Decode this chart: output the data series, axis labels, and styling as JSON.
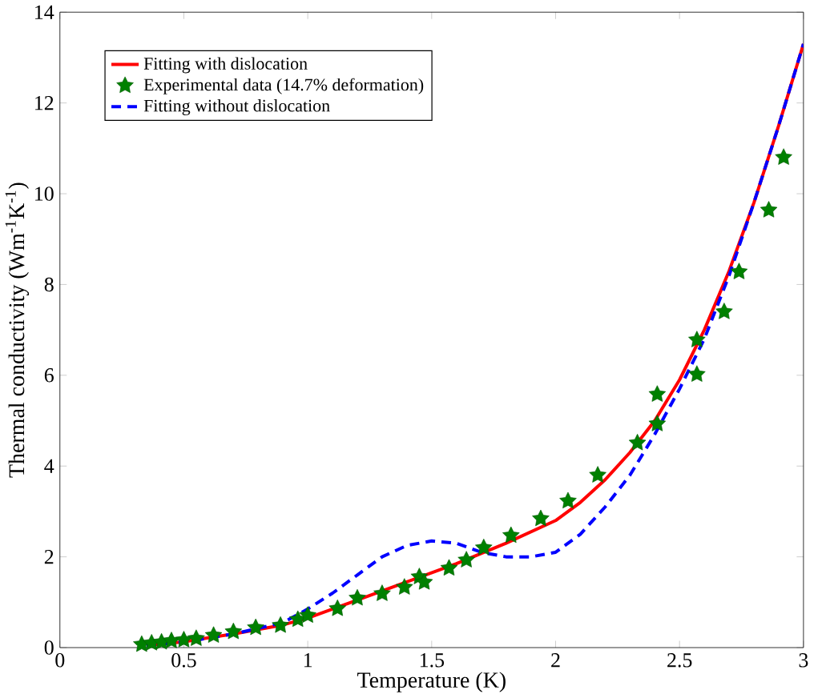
{
  "chart_data": {
    "type": "line",
    "xlabel": "Temperature (K)",
    "ylabel": "Thermal conductivity (Wm$^{-1}$K$^{-1}$)",
    "xlim": [
      0,
      3
    ],
    "ylim": [
      0,
      14
    ],
    "xticks": [
      0,
      0.5,
      1,
      1.5,
      2,
      2.5,
      3
    ],
    "yticks": [
      0,
      2,
      4,
      6,
      8,
      10,
      12,
      14
    ],
    "grid": false,
    "legend": "top left",
    "series": [
      {
        "name": "Fitting with dislocation",
        "color": "#ff0000",
        "line_style": "solid",
        "marker": "none",
        "x": [
          0.35,
          0.5,
          0.7,
          0.9,
          1.0,
          1.2,
          1.4,
          1.6,
          1.8,
          2.0,
          2.1,
          2.2,
          2.3,
          2.4,
          2.5,
          2.6,
          2.7,
          2.8,
          2.9,
          3.0
        ],
        "values": [
          0.05,
          0.13,
          0.3,
          0.5,
          0.65,
          1.05,
          1.45,
          1.85,
          2.3,
          2.8,
          3.2,
          3.7,
          4.3,
          5.0,
          5.9,
          7.0,
          8.3,
          9.8,
          11.5,
          13.3
        ]
      },
      {
        "name": "Experimental data (14.7% deformation)",
        "type": "scatter",
        "color": "#008000",
        "marker": "star",
        "x": [
          0.33,
          0.37,
          0.41,
          0.45,
          0.5,
          0.55,
          0.62,
          0.7,
          0.79,
          0.89,
          0.96,
          1.0,
          1.12,
          1.2,
          1.3,
          1.39,
          1.45,
          1.47,
          1.57,
          1.64,
          1.71,
          1.82,
          1.94,
          2.05,
          2.17,
          2.33,
          2.41,
          2.41,
          2.57,
          2.57,
          2.68,
          2.74,
          2.86,
          2.92
        ],
        "values": [
          0.07,
          0.1,
          0.12,
          0.15,
          0.17,
          0.2,
          0.27,
          0.35,
          0.44,
          0.49,
          0.62,
          0.71,
          0.86,
          1.09,
          1.19,
          1.33,
          1.56,
          1.44,
          1.75,
          1.93,
          2.2,
          2.47,
          2.84,
          3.23,
          3.8,
          4.51,
          4.93,
          5.58,
          6.02,
          6.78,
          7.4,
          8.28,
          9.64,
          10.8
        ]
      },
      {
        "name": "Fitting without dislocation",
        "color": "#0000ff",
        "line_style": "dashed",
        "marker": "none",
        "x": [
          0.35,
          0.5,
          0.7,
          0.9,
          1.0,
          1.1,
          1.2,
          1.3,
          1.4,
          1.5,
          1.6,
          1.7,
          1.8,
          1.9,
          2.0,
          2.1,
          2.2,
          2.3,
          2.4,
          2.5,
          2.6,
          2.7,
          2.8,
          2.9,
          3.0
        ],
        "values": [
          0.05,
          0.12,
          0.3,
          0.55,
          0.85,
          1.2,
          1.6,
          2.0,
          2.25,
          2.35,
          2.3,
          2.1,
          2.0,
          2.0,
          2.1,
          2.5,
          3.1,
          3.8,
          4.7,
          5.7,
          6.8,
          8.2,
          9.8,
          11.5,
          13.3
        ]
      }
    ]
  }
}
